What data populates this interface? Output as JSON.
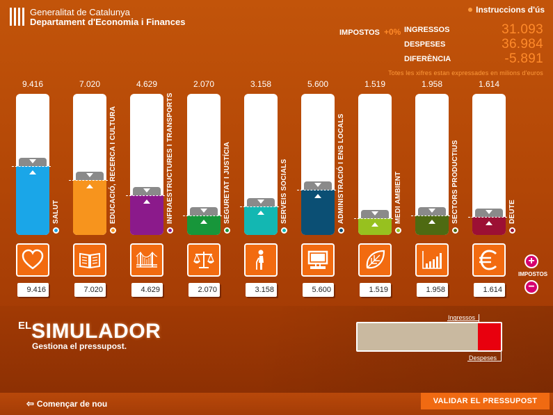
{
  "header": {
    "org_line1": "Generalitat de Catalunya",
    "org_line2": "Departament d'Economia i Finances",
    "instructions": "Instruccions d'ús"
  },
  "taxes": {
    "label": "IMPOSTOS",
    "percent": "+0%"
  },
  "totals": [
    {
      "label": "INGRESSOS",
      "value": "31.093"
    },
    {
      "label": "DESPESES",
      "value": "36.984"
    },
    {
      "label": "DIFERÈNCIA",
      "value": "-5.891"
    }
  ],
  "note": "Totes les xifres estan expressades en milions d'euros",
  "categories": [
    {
      "label": "SALUT",
      "budget": "9.416",
      "value": "9.416",
      "color": "#1aa6e8",
      "icon": "heart-icon",
      "level": 0.49,
      "slug": "salut"
    },
    {
      "label": "EDUCACIÓ, RECERCA I CULTURA",
      "budget": "7.020",
      "value": "7.020",
      "color": "#f7941d",
      "icon": "book-icon",
      "level": 0.39,
      "slug": "educacio"
    },
    {
      "label": "INFRAESTRUCTURES I TRANSPORTS",
      "budget": "4.629",
      "value": "4.629",
      "color": "#8b1a8b",
      "icon": "bridge-icon",
      "level": 0.28,
      "slug": "infraestructures"
    },
    {
      "label": "SEGURETAT I JUSTÍCIA",
      "budget": "2.070",
      "value": "2.070",
      "color": "#17963a",
      "icon": "scales-icon",
      "level": 0.14,
      "slug": "seguretat"
    },
    {
      "label": "SERVEIS SOCIALS",
      "budget": "3.158",
      "value": "3.158",
      "color": "#13b7b2",
      "icon": "elderly-person-icon",
      "level": 0.2,
      "slug": "serveis-socials"
    },
    {
      "label": "ADMINISTRACIÓ I ENS LOCALS",
      "budget": "5.600",
      "value": "5.600",
      "color": "#0b4f74",
      "icon": "computer-icon",
      "level": 0.32,
      "slug": "administracio"
    },
    {
      "label": "MEDI AMBIENT",
      "budget": "1.519",
      "value": "1.519",
      "color": "#97c11f",
      "icon": "leaf-icon",
      "level": 0.12,
      "slug": "medi-ambient"
    },
    {
      "label": "SECTORS PRODUCTIUS",
      "budget": "1.958",
      "value": "1.958",
      "color": "#4e6a12",
      "icon": "bar-chart-icon",
      "level": 0.14,
      "slug": "sectors-productius"
    },
    {
      "label": "DEUTE",
      "budget": "1.614",
      "value": "1.614",
      "color": "#9c1034",
      "icon": "euro-icon",
      "level": 0.13,
      "slug": "deute"
    }
  ],
  "side_taxes_label": "IMPOSTOS",
  "plus_label": "+",
  "minus_label": "−",
  "brand": {
    "el": "EL",
    "main": "SIMULADOR",
    "sub": "Gestiona el pressupost."
  },
  "meter": {
    "income_label": "Ingressos",
    "expense_label": "Despeses",
    "income_ratio": 0.84,
    "expense_ratio": 1.0
  },
  "footer": {
    "restart": "Començar de nou",
    "validate": "VALIDAR EL PRESSUPOST"
  }
}
